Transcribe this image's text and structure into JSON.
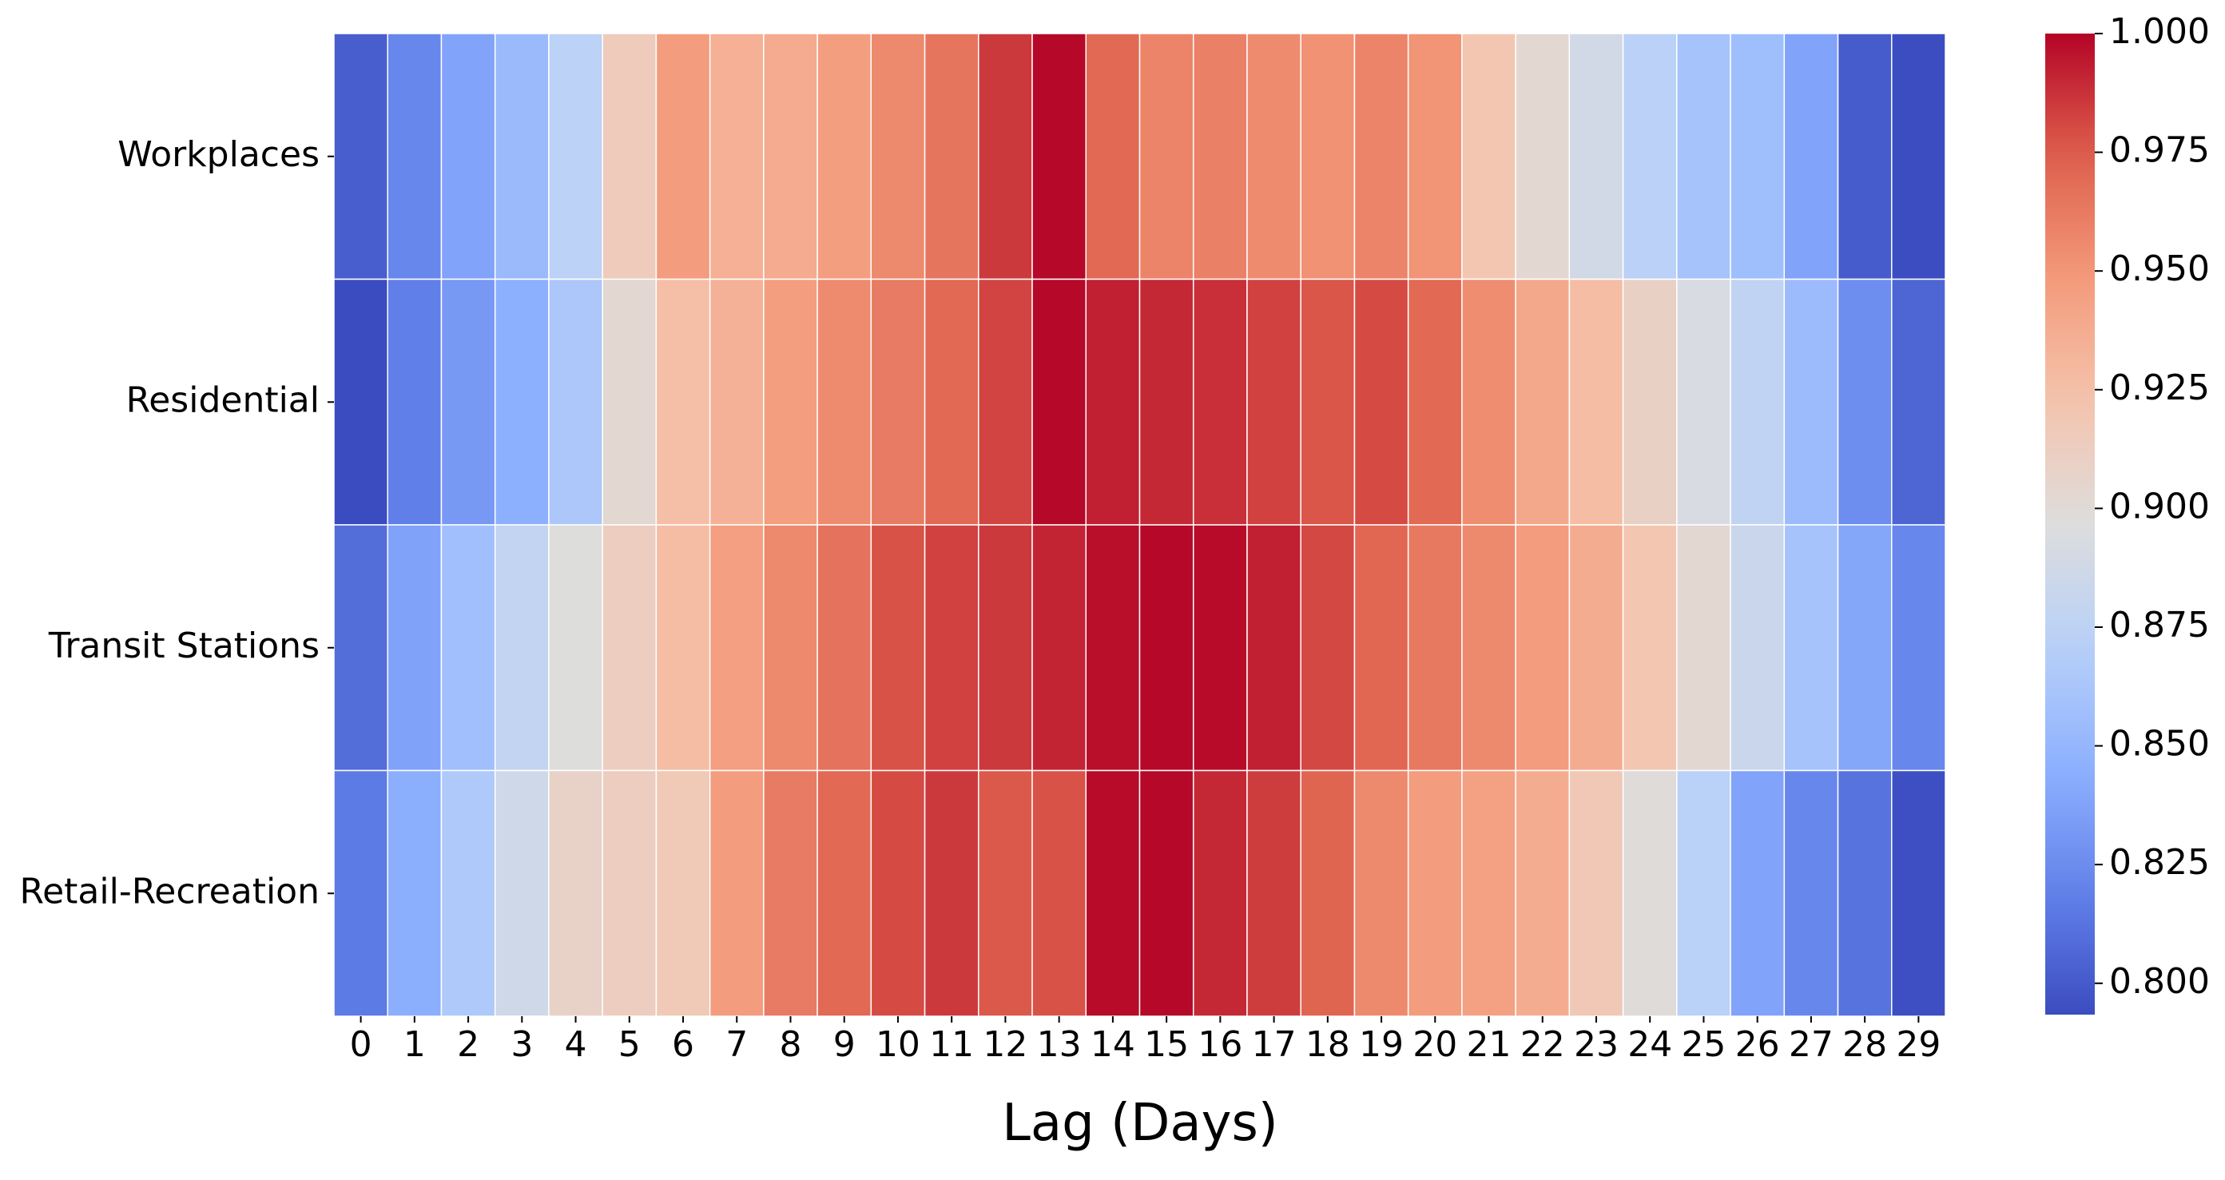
{
  "chart_data": {
    "type": "heatmap",
    "title": "",
    "xlabel": "Lag (Days)",
    "ylabel": "",
    "x_categories": [
      "0",
      "1",
      "2",
      "3",
      "4",
      "5",
      "6",
      "7",
      "8",
      "9",
      "10",
      "11",
      "12",
      "13",
      "14",
      "15",
      "16",
      "17",
      "18",
      "19",
      "20",
      "21",
      "22",
      "23",
      "24",
      "25",
      "26",
      "27",
      "28",
      "29"
    ],
    "y_categories": [
      "Workplaces",
      "Residential",
      "Transit Stations",
      "Retail-Recreation"
    ],
    "values": [
      [
        0.802,
        0.822,
        0.838,
        0.853,
        0.874,
        0.915,
        0.947,
        0.935,
        0.938,
        0.946,
        0.956,
        0.965,
        0.985,
        0.999,
        0.97,
        0.958,
        0.96,
        0.955,
        0.952,
        0.958,
        0.951,
        0.92,
        0.903,
        0.888,
        0.873,
        0.86,
        0.856,
        0.838,
        0.801,
        0.794
      ],
      [
        0.793,
        0.818,
        0.832,
        0.845,
        0.864,
        0.903,
        0.926,
        0.934,
        0.946,
        0.955,
        0.962,
        0.97,
        0.982,
        0.999,
        0.992,
        0.99,
        0.988,
        0.983,
        0.977,
        0.98,
        0.97,
        0.954,
        0.94,
        0.927,
        0.91,
        0.893,
        0.877,
        0.854,
        0.826,
        0.806
      ],
      [
        0.809,
        0.837,
        0.857,
        0.878,
        0.897,
        0.913,
        0.927,
        0.945,
        0.956,
        0.966,
        0.978,
        0.983,
        0.985,
        0.991,
        0.997,
        0.999,
        0.998,
        0.992,
        0.981,
        0.971,
        0.963,
        0.956,
        0.947,
        0.937,
        0.92,
        0.903,
        0.883,
        0.86,
        0.84,
        0.822
      ],
      [
        0.816,
        0.844,
        0.865,
        0.887,
        0.908,
        0.913,
        0.917,
        0.947,
        0.962,
        0.97,
        0.98,
        0.985,
        0.976,
        0.978,
        0.998,
        0.999,
        0.99,
        0.984,
        0.972,
        0.956,
        0.947,
        0.944,
        0.937,
        0.918,
        0.899,
        0.872,
        0.838,
        0.822,
        0.812,
        0.795
      ]
    ],
    "colorbar": {
      "min": 0.7934,
      "max": 1.0,
      "ticks": [
        "0.800",
        "0.825",
        "0.850",
        "0.875",
        "0.900",
        "0.925",
        "0.950",
        "0.975",
        "1.000"
      ],
      "colormap": "coolwarm"
    },
    "grid": true
  }
}
